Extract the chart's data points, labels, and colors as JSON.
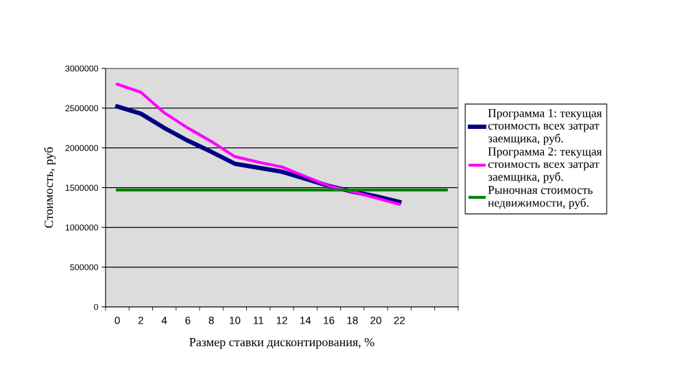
{
  "chart_data": {
    "type": "line",
    "xlabel": "Размер ставки дисконтирования, %",
    "ylabel": "Стоимость, руб",
    "categories": [
      "0",
      "2",
      "4",
      "6",
      "8",
      "10",
      "11",
      "12",
      "14",
      "16",
      "18",
      "20",
      "22",
      null,
      null
    ],
    "series": [
      {
        "name": "Программа 1: текущая\nстоимость всех затрат\nзаемщика, руб.",
        "color": "#000080",
        "values": [
          2520000,
          2430000,
          2250000,
          2090000,
          1950000,
          1800000,
          1750000,
          1700000,
          1610000,
          1520000,
          1450000,
          1390000,
          1320000,
          null,
          null
        ]
      },
      {
        "name": "Программа 2: текущая\nстоимость всех затрат\nзаемщика, руб.",
        "color": "#ff00ff",
        "values": [
          2800000,
          2700000,
          2440000,
          2250000,
          2080000,
          1890000,
          1820000,
          1760000,
          1640000,
          1520000,
          1450000,
          1370000,
          1290000,
          null,
          null
        ]
      },
      {
        "name": "Рыночная стоимость\nнедвижимости, руб.",
        "color": "#008000",
        "values": [
          1470000,
          1470000,
          1470000,
          1470000,
          1470000,
          1470000,
          1470000,
          1470000,
          1470000,
          1470000,
          1470000,
          1470000,
          1470000,
          1470000,
          1470000
        ]
      }
    ],
    "ylim": [
      0,
      3000000
    ],
    "yticks": [
      0,
      500000,
      1000000,
      1500000,
      2000000,
      2500000,
      3000000
    ],
    "grid": "y",
    "legend": "right",
    "marker": "none",
    "line_style": "solid"
  }
}
